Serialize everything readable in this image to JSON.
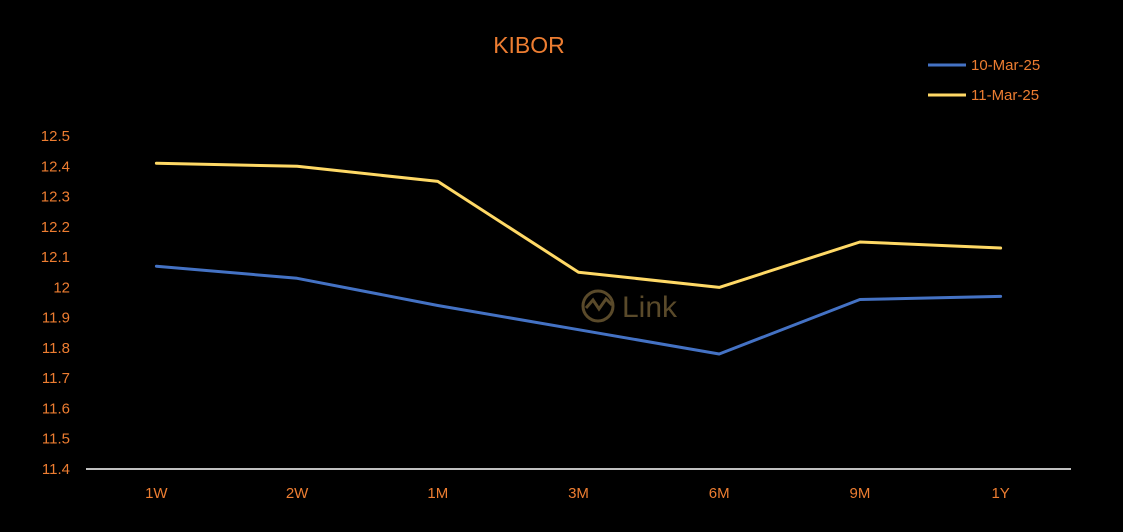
{
  "chart_data": {
    "type": "line",
    "title": "KIBOR",
    "categories": [
      "1W",
      "2W",
      "1M",
      "3M",
      "6M",
      "9M",
      "1Y"
    ],
    "series": [
      {
        "name": "10-Mar-25",
        "color": "#4472C4",
        "values": [
          12.07,
          12.03,
          11.94,
          11.86,
          11.78,
          11.96,
          11.97
        ]
      },
      {
        "name": "11-Mar-25",
        "color": "#FFD966",
        "values": [
          12.41,
          12.4,
          12.35,
          12.05,
          12.0,
          12.15,
          12.13
        ]
      }
    ],
    "ylim": [
      11.4,
      12.5
    ],
    "yticks": [
      "12.5",
      "12.4",
      "12.3",
      "12.2",
      "12.1",
      "12",
      "11.9",
      "11.8",
      "11.7",
      "11.6",
      "11.5",
      "11.4"
    ],
    "grid": false,
    "legend": "top-right",
    "text_color": "#ED7D31",
    "axis_color": "#FFFFFF"
  },
  "watermark": {
    "text": "Link",
    "icon": "chart-logo-icon"
  }
}
